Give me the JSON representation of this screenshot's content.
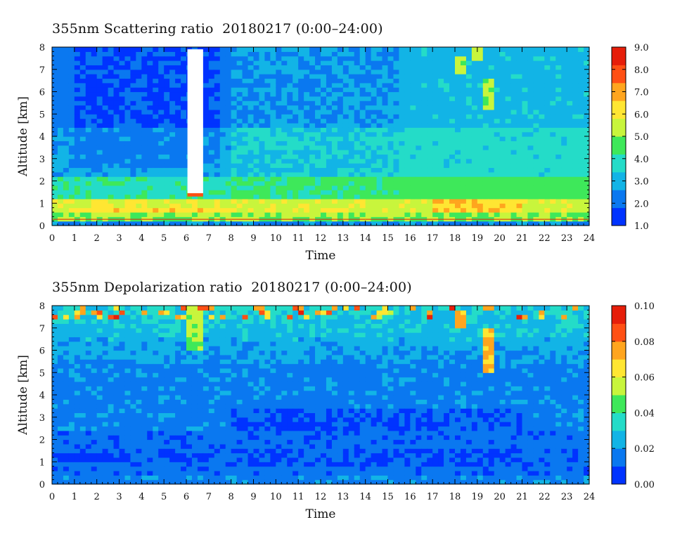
{
  "chart_data": [
    {
      "type": "heatmap",
      "title": "355nm Scattering ratio  20180217 (0:00–24:00)",
      "xlabel": "Time",
      "ylabel": "Altitude [km]",
      "xlim": [
        0,
        24
      ],
      "ylim": [
        0,
        8
      ],
      "x_ticks": [
        "0",
        "1",
        "2",
        "3",
        "4",
        "5",
        "6",
        "7",
        "8",
        "9",
        "10",
        "11",
        "12",
        "13",
        "14",
        "15",
        "16",
        "17",
        "18",
        "19",
        "20",
        "21",
        "22",
        "23",
        "24"
      ],
      "y_ticks": [
        "0",
        "1",
        "2",
        "3",
        "4",
        "5",
        "6",
        "7",
        "8"
      ],
      "colorbar": {
        "min": 1.0,
        "max": 9.0,
        "ticks": [
          "1.0",
          "2.0",
          "3.0",
          "4.0",
          "5.0",
          "6.0",
          "7.0",
          "8.0",
          "9.0"
        ],
        "colors": [
          "#0033ff",
          "#0a78f0",
          "#12b4e6",
          "#24dcc8",
          "#3ee85a",
          "#c8f53c",
          "#ffe632",
          "#ffa51e",
          "#ff5014",
          "#e61e0a"
        ]
      }
    },
    {
      "type": "heatmap",
      "title": "355nm Depolarization ratio  20180217 (0:00–24:00)",
      "xlabel": "Time",
      "ylabel": "Altitude [km]",
      "xlim": [
        0,
        24
      ],
      "ylim": [
        0,
        8
      ],
      "x_ticks": [
        "0",
        "1",
        "2",
        "3",
        "4",
        "5",
        "6",
        "7",
        "8",
        "9",
        "10",
        "11",
        "12",
        "13",
        "14",
        "15",
        "16",
        "17",
        "18",
        "19",
        "20",
        "21",
        "22",
        "23",
        "24"
      ],
      "y_ticks": [
        "0",
        "1",
        "2",
        "3",
        "4",
        "5",
        "6",
        "7",
        "8"
      ],
      "colorbar": {
        "min": 0.0,
        "max": 0.1,
        "ticks": [
          "0.00",
          "0.02",
          "0.04",
          "0.06",
          "0.08",
          "0.10"
        ],
        "colors": [
          "#0033ff",
          "#0a78f0",
          "#12b4e6",
          "#24dcc8",
          "#3ee85a",
          "#c8f53c",
          "#ffe632",
          "#ffa51e",
          "#ff5014",
          "#e61e0a"
        ]
      }
    }
  ]
}
